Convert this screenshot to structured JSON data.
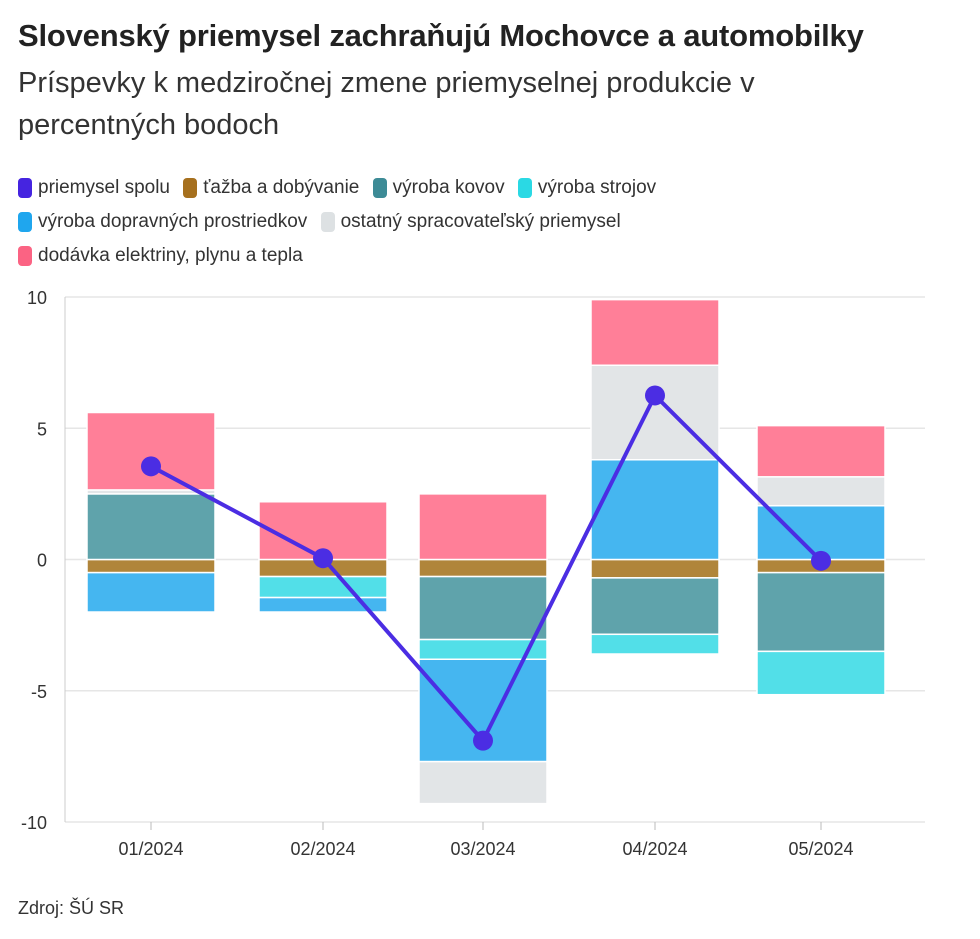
{
  "title": "Slovenský priemysel zachraňujú Mochovce a automobilky",
  "subtitle": "Príspevky k medziročnej zmene priemyselnej produkcie v percentných bodoch",
  "source": "Zdroj: ŠÚ SR",
  "chart_data": {
    "type": "bar",
    "stacked": true,
    "categories": [
      "01/2024",
      "02/2024",
      "03/2024",
      "04/2024",
      "05/2024"
    ],
    "ylim": [
      -10,
      10
    ],
    "yticks": [
      10,
      5,
      0,
      -5,
      -10
    ],
    "ytick_labels": [
      "10",
      "5",
      "0",
      "-5",
      "-10"
    ],
    "grid": true,
    "legend_position": "top",
    "series": [
      {
        "name": "ťažba a dobývanie",
        "color": "#b0853a",
        "values": [
          -0.5,
          -0.65,
          -0.65,
          -0.7,
          -0.5
        ]
      },
      {
        "name": "výroba kovov",
        "color": "#5fa3ab",
        "values": [
          2.5,
          0,
          -2.4,
          -2.15,
          -3.0
        ]
      },
      {
        "name": "výroba strojov",
        "color": "#52dfe8",
        "values": [
          0,
          -0.8,
          -0.75,
          -0.75,
          -1.65
        ]
      },
      {
        "name": "výroba dopravných prostriedkov",
        "color": "#45b6f0",
        "values": [
          -1.5,
          -0.55,
          -3.9,
          3.8,
          2.05
        ]
      },
      {
        "name": "ostatný spracovateľský priemysel",
        "color": "#e2e5e7",
        "values": [
          0.15,
          0,
          -1.6,
          3.6,
          1.1
        ]
      },
      {
        "name": "dodávka elektriny, plynu a tepla",
        "color": "#ff7f98",
        "values": [
          2.95,
          2.2,
          2.5,
          2.5,
          1.95
        ]
      }
    ],
    "line": {
      "name": "priemysel spolu",
      "color": "#4b2de3",
      "values": [
        3.55,
        0.05,
        -6.9,
        6.25,
        -0.05
      ]
    }
  },
  "legend": [
    {
      "label": "priemysel spolu",
      "color": "#4524e0"
    },
    {
      "label": "ťažba a dobývanie",
      "color": "#a6701e"
    },
    {
      "label": "výroba kovov",
      "color": "#3d8b96"
    },
    {
      "label": "výroba strojov",
      "color": "#2ad9e4"
    },
    {
      "label": "výroba dopravných prostriedkov",
      "color": "#1fa6ee"
    },
    {
      "label": "ostatný spracovateľský priemysel",
      "color": "#dde1e3"
    },
    {
      "label": "dodávka elektriny, plynu a tepla",
      "color": "#fb6383"
    }
  ]
}
